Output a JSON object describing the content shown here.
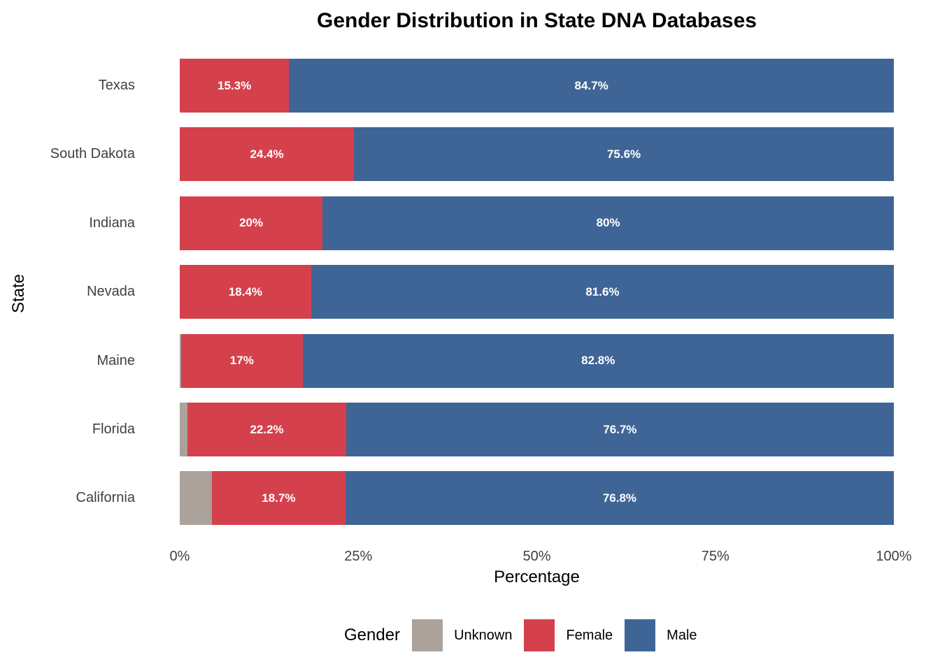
{
  "chart_data": {
    "type": "bar",
    "orientation": "horizontal-stacked",
    "title": "Gender Distribution in State DNA Databases",
    "xlabel": "Percentage",
    "ylabel": "State",
    "xlim": [
      0,
      100
    ],
    "grid": false,
    "legend_position": "bottom",
    "categories": [
      "Texas",
      "South Dakota",
      "Indiana",
      "Nevada",
      "Maine",
      "Florida",
      "California"
    ],
    "series": [
      {
        "name": "Unknown",
        "color": "#aba29c",
        "values": [
          0,
          0,
          0,
          0,
          0.2,
          1.1,
          4.5
        ],
        "labels": [
          "",
          "",
          "",
          "",
          "",
          "",
          ""
        ]
      },
      {
        "name": "Female",
        "color": "#d4414d",
        "values": [
          15.3,
          24.4,
          20,
          18.4,
          17,
          22.2,
          18.7
        ],
        "labels": [
          "15.3%",
          "24.4%",
          "20%",
          "18.4%",
          "17%",
          "22.2%",
          "18.7%"
        ]
      },
      {
        "name": "Male",
        "color": "#3e6595",
        "values": [
          84.7,
          75.6,
          80,
          81.6,
          82.8,
          76.7,
          76.8
        ],
        "labels": [
          "84.7%",
          "75.6%",
          "80%",
          "81.6%",
          "82.8%",
          "76.7%",
          "76.8%"
        ]
      }
    ],
    "x_ticks": [
      {
        "label": "0%",
        "value": 0
      },
      {
        "label": "25%",
        "value": 25
      },
      {
        "label": "50%",
        "value": 50
      },
      {
        "label": "75%",
        "value": 75
      },
      {
        "label": "100%",
        "value": 100
      }
    ],
    "legend": {
      "title": "Gender",
      "items": [
        "Unknown",
        "Female",
        "Male"
      ]
    },
    "colors": {
      "background": "#ffffff",
      "axis_text": "#404040",
      "title_text": "#000000",
      "bar_label_text": "#ffffff"
    }
  }
}
